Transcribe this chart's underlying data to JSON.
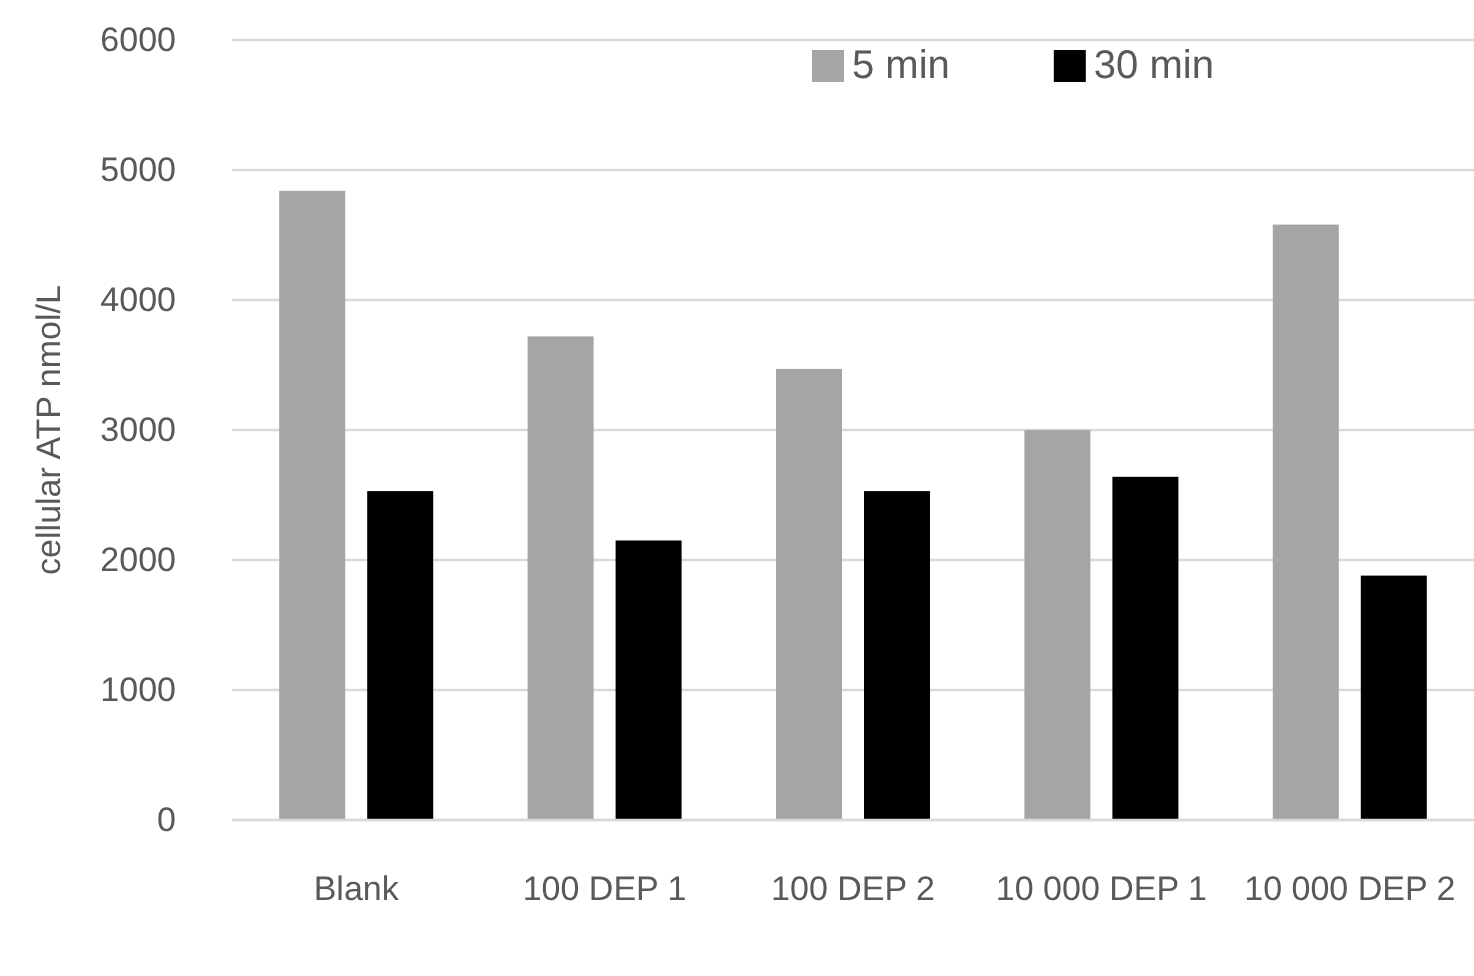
{
  "chart_data": {
    "type": "bar",
    "ylabel": "cellular ATP nmol/L",
    "categories": [
      "Blank",
      "100 DEP 1",
      "100 DEP 2",
      "10 000 DEP 1",
      "10 000 DEP 2"
    ],
    "series": [
      {
        "name": "5 min",
        "color": "#a5a5a5",
        "values": [
          4840,
          3720,
          3470,
          3000,
          4580
        ]
      },
      {
        "name": "30 min",
        "color": "#000000",
        "values": [
          2530,
          2150,
          2530,
          2640,
          1880
        ]
      }
    ],
    "ylim": [
      0,
      6000
    ],
    "yticks": [
      0,
      1000,
      2000,
      3000,
      4000,
      5000,
      6000
    ],
    "grid": "y",
    "legend": "top right"
  }
}
